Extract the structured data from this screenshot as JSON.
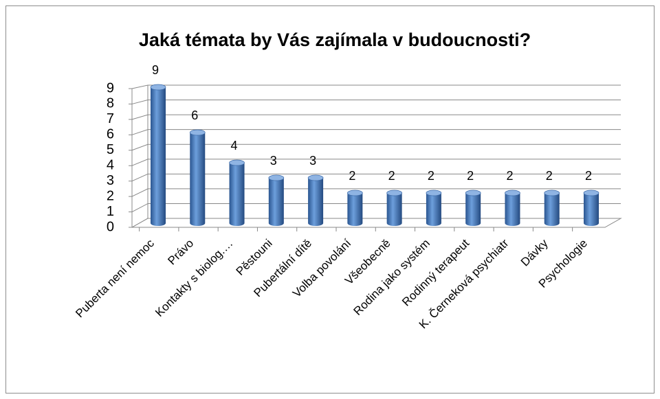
{
  "chart_data": {
    "type": "bar3d",
    "title": "Jaká témata by Vás zajímala v budoucnosti?",
    "categories": [
      "Puberta není nemoc",
      "Právo",
      "Kontakty s biolog.…",
      "Pěstouni",
      "Pubertální dítě",
      "Volba povolání",
      "Všeobecně",
      "Rodina jako systém",
      "Rodinný terapeut",
      "K. Černeková psychiatr",
      "Dávky",
      "Psychologie"
    ],
    "values": [
      9,
      6,
      4,
      3,
      3,
      2,
      2,
      2,
      2,
      2,
      2,
      2
    ],
    "color": "#4a7ebb",
    "ylim": [
      0,
      9
    ],
    "yticks": [
      0,
      1,
      2,
      3,
      4,
      5,
      6,
      7,
      8,
      9
    ],
    "grid": true
  }
}
